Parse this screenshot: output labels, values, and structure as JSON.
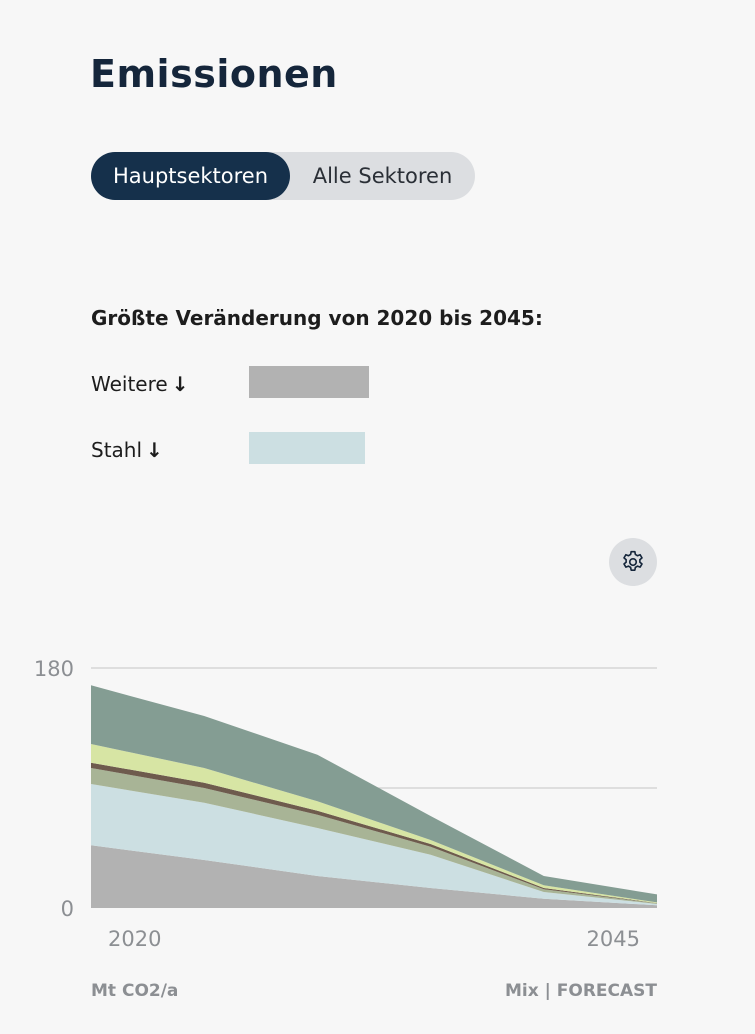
{
  "page": {
    "title": "Emissionen"
  },
  "toggle": {
    "active_label": "Hauptsektoren",
    "inactive_label": "Alle Sektoren"
  },
  "changes": {
    "heading": "Größte Veränderung von 2020 bis 2045:",
    "items": [
      {
        "label": "Weitere",
        "direction_icon": "arrow-down-icon",
        "arrow": "↓",
        "color": "#b2b2b2",
        "bar_fraction": 1.0
      },
      {
        "label": "Stahl",
        "direction_icon": "arrow-down-icon",
        "arrow": "↓",
        "color": "#ccdfe2",
        "bar_fraction": 0.967
      }
    ]
  },
  "settings": {
    "icon": "gear-icon"
  },
  "footer": {
    "unit": "Mt CO2/a",
    "source": "Mix | FORECAST"
  },
  "chart_data": {
    "type": "area",
    "stacked": true,
    "x": [
      2020,
      2025,
      2030,
      2035,
      2040,
      2045
    ],
    "x_tick_labels": [
      "2020",
      "2045"
    ],
    "y_tick_labels": [
      "180",
      "0"
    ],
    "ylim": [
      0,
      180
    ],
    "xlabel": "",
    "ylabel": "Mt CO2/a",
    "grid": true,
    "series": [
      {
        "color": "#b2b2b2",
        "values": [
          47,
          36,
          24,
          15,
          7,
          2
        ]
      },
      {
        "color": "#ccdfe2",
        "values": [
          46,
          43,
          36,
          25,
          5,
          1
        ]
      },
      {
        "color": "#a8b496",
        "values": [
          12,
          11,
          10,
          6,
          2,
          0.5
        ]
      },
      {
        "color": "#6e5b4d",
        "values": [
          4,
          4,
          3,
          2,
          1,
          0.2
        ]
      },
      {
        "color": "#d7e5a4",
        "values": [
          14,
          11,
          7,
          3,
          2,
          0.5
        ]
      },
      {
        "color": "#849d93",
        "values": [
          44,
          39,
          35,
          18,
          7,
          6
        ]
      }
    ]
  }
}
